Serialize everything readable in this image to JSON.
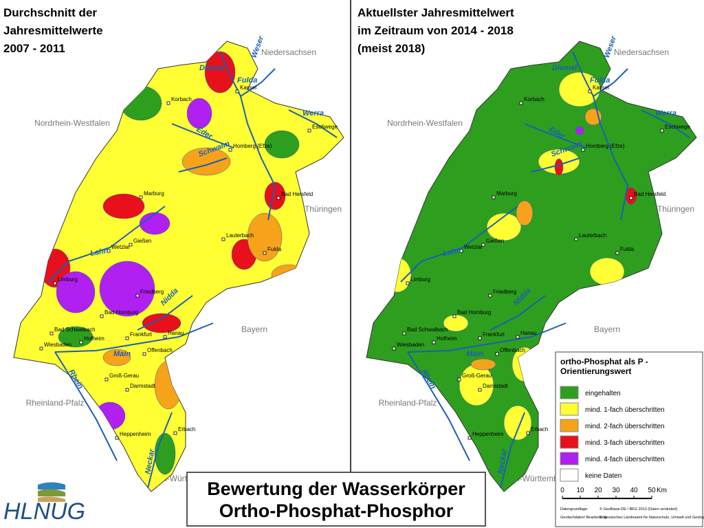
{
  "maps": [
    {
      "title": [
        "Durchschnitt der",
        "Jahresmittelwerte",
        "2007 - 2011"
      ]
    },
    {
      "title": [
        "Aktuellster Jahresmittelwert",
        "im Zeitraum von 2014 - 2018",
        "(meist 2018)"
      ]
    }
  ],
  "neighbors": [
    "Niedersachsen",
    "Nordrhein-Westfalen",
    "Thüringen",
    "Bayern",
    "Rheinland-Pfalz",
    "Baden-Württemberg"
  ],
  "cities": [
    "Kassel",
    "Korbach",
    "Eschwege",
    "Homberg (Efze)",
    "Bad Hersfeld",
    "Marburg",
    "Gießen",
    "Wetzlar",
    "Lauterbach",
    "Fulda",
    "Limburg",
    "Friedberg",
    "Bad Homburg",
    "Bad Schwalbach",
    "Hofheim",
    "Frankfurt",
    "Hanau",
    "Wiesbaden",
    "Offenbach",
    "Groß-Gerau",
    "Darmstadt",
    "Heppenheim",
    "Erbach"
  ],
  "rivers": [
    "Diemel",
    "Weser",
    "Fulda",
    "Werra",
    "Eder",
    "Schwalm",
    "Lahn",
    "Nidda",
    "Main",
    "Rhein",
    "Neckar"
  ],
  "legend": {
    "title": [
      "ortho-Phosphat als P -",
      "Orientierungswert"
    ],
    "items": [
      {
        "label": "eingehalten",
        "color": "#2e9e1f"
      },
      {
        "label": "mind. 1-fach überschritten",
        "color": "#ffff33"
      },
      {
        "label": "mind. 2-fach überschritten",
        "color": "#f7a21b"
      },
      {
        "label": "mind. 3-fach überschritten",
        "color": "#e8101a"
      },
      {
        "label": "mind. 4-fach überschritten",
        "color": "#b020f0"
      },
      {
        "label": "keine Daten",
        "color": "#ffffff"
      }
    ]
  },
  "scale": {
    "ticks": [
      0,
      10,
      20,
      30,
      40,
      50
    ],
    "unit": "Km"
  },
  "credits": [
    {
      "label": "Datengrundlage:",
      "text": "© GeoBasis-DE / BKG 2013 (Daten verändert)"
    },
    {
      "label": "Geofachdaten/ Bearbeitung:",
      "text": "© Hessisches Landesamt für Naturschutz, Umwelt und Geologie - alle Rechte vorbehalten"
    }
  ],
  "main_title": [
    "Bewertung der Wasserkörper",
    "Ortho-Phosphat-Phosphor"
  ],
  "logo": "HLNUG"
}
